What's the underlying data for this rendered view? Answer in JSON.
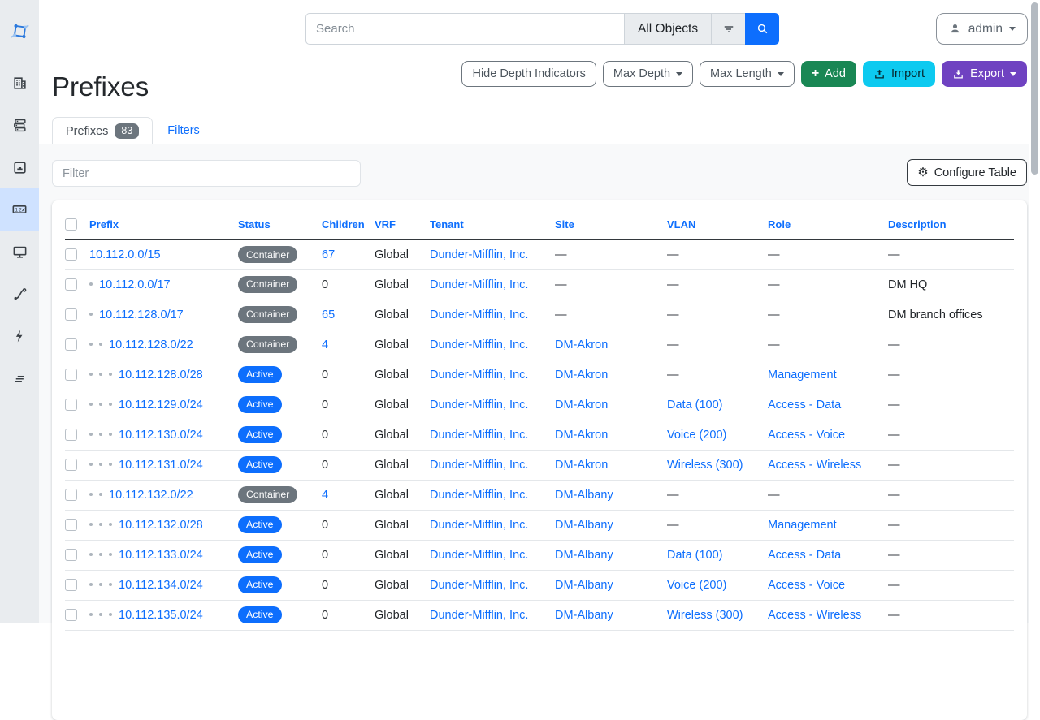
{
  "topbar": {
    "search_placeholder": "Search",
    "scope_label": "All Objects",
    "user_label": "admin"
  },
  "sidebar": {
    "items": [
      {
        "icon": "netbox-logo"
      },
      {
        "icon": "building"
      },
      {
        "icon": "server-stack"
      },
      {
        "icon": "ethernet-port"
      },
      {
        "icon": "counter",
        "active": true
      },
      {
        "icon": "monitor"
      },
      {
        "icon": "cable"
      },
      {
        "icon": "lightning-bolt"
      },
      {
        "icon": "stacked-lines"
      }
    ]
  },
  "page": {
    "title": "Prefixes"
  },
  "toolbar": {
    "hide_depth_label": "Hide Depth Indicators",
    "max_depth_label": "Max Depth",
    "max_length_label": "Max Length",
    "add_label": "Add",
    "import_label": "Import",
    "export_label": "Export"
  },
  "tabs": [
    {
      "label": "Prefixes",
      "count": "83",
      "active": true
    },
    {
      "label": "Filters",
      "active": false
    }
  ],
  "table_controls": {
    "filter_placeholder": "Filter",
    "configure_label": "Configure Table"
  },
  "icons": {
    "gear": "⚙",
    "plus": "+"
  },
  "colors": {
    "status": {
      "Container": "#6c757d",
      "Active": "#0d6efd"
    },
    "link": "#0d6efd",
    "add_button": "#198754",
    "import_button": "#0dcaf0",
    "export_button": "#6f42c1",
    "sidebar_active_bg": "#cfe2ff"
  },
  "table": {
    "empty": "—",
    "columns": [
      "Prefix",
      "Status",
      "Children",
      "VRF",
      "Tenant",
      "Site",
      "VLAN",
      "Role",
      "Description"
    ],
    "rows": [
      {
        "depth": 0,
        "prefix": "10.112.0.0/15",
        "status": "Container",
        "children": "67",
        "children_link": true,
        "vrf": "Global",
        "tenant": "Dunder-Mifflin, Inc.",
        "site": "—",
        "vlan": "—",
        "role": "—",
        "description": "—"
      },
      {
        "depth": 1,
        "prefix": "10.112.0.0/17",
        "status": "Container",
        "children": "0",
        "children_link": false,
        "vrf": "Global",
        "tenant": "Dunder-Mifflin, Inc.",
        "site": "—",
        "vlan": "—",
        "role": "—",
        "description": "DM HQ"
      },
      {
        "depth": 1,
        "prefix": "10.112.128.0/17",
        "status": "Container",
        "children": "65",
        "children_link": true,
        "vrf": "Global",
        "tenant": "Dunder-Mifflin, Inc.",
        "site": "—",
        "vlan": "—",
        "role": "—",
        "description": "DM branch offices"
      },
      {
        "depth": 2,
        "prefix": "10.112.128.0/22",
        "status": "Container",
        "children": "4",
        "children_link": true,
        "vrf": "Global",
        "tenant": "Dunder-Mifflin, Inc.",
        "site": "DM-Akron",
        "vlan": "—",
        "role": "—",
        "description": "—"
      },
      {
        "depth": 3,
        "prefix": "10.112.128.0/28",
        "status": "Active",
        "children": "0",
        "children_link": false,
        "vrf": "Global",
        "tenant": "Dunder-Mifflin, Inc.",
        "site": "DM-Akron",
        "vlan": "—",
        "role": "Management",
        "description": "—"
      },
      {
        "depth": 3,
        "prefix": "10.112.129.0/24",
        "status": "Active",
        "children": "0",
        "children_link": false,
        "vrf": "Global",
        "tenant": "Dunder-Mifflin, Inc.",
        "site": "DM-Akron",
        "vlan": "Data (100)",
        "role": "Access - Data",
        "description": "—"
      },
      {
        "depth": 3,
        "prefix": "10.112.130.0/24",
        "status": "Active",
        "children": "0",
        "children_link": false,
        "vrf": "Global",
        "tenant": "Dunder-Mifflin, Inc.",
        "site": "DM-Akron",
        "vlan": "Voice (200)",
        "role": "Access - Voice",
        "description": "—"
      },
      {
        "depth": 3,
        "prefix": "10.112.131.0/24",
        "status": "Active",
        "children": "0",
        "children_link": false,
        "vrf": "Global",
        "tenant": "Dunder-Mifflin, Inc.",
        "site": "DM-Akron",
        "vlan": "Wireless (300)",
        "role": "Access - Wireless",
        "description": "—"
      },
      {
        "depth": 2,
        "prefix": "10.112.132.0/22",
        "status": "Container",
        "children": "4",
        "children_link": true,
        "vrf": "Global",
        "tenant": "Dunder-Mifflin, Inc.",
        "site": "DM-Albany",
        "vlan": "—",
        "role": "—",
        "description": "—"
      },
      {
        "depth": 3,
        "prefix": "10.112.132.0/28",
        "status": "Active",
        "children": "0",
        "children_link": false,
        "vrf": "Global",
        "tenant": "Dunder-Mifflin, Inc.",
        "site": "DM-Albany",
        "vlan": "—",
        "role": "Management",
        "description": "—"
      },
      {
        "depth": 3,
        "prefix": "10.112.133.0/24",
        "status": "Active",
        "children": "0",
        "children_link": false,
        "vrf": "Global",
        "tenant": "Dunder-Mifflin, Inc.",
        "site": "DM-Albany",
        "vlan": "Data (100)",
        "role": "Access - Data",
        "description": "—"
      },
      {
        "depth": 3,
        "prefix": "10.112.134.0/24",
        "status": "Active",
        "children": "0",
        "children_link": false,
        "vrf": "Global",
        "tenant": "Dunder-Mifflin, Inc.",
        "site": "DM-Albany",
        "vlan": "Voice (200)",
        "role": "Access - Voice",
        "description": "—"
      },
      {
        "depth": 3,
        "prefix": "10.112.135.0/24",
        "status": "Active",
        "children": "0",
        "children_link": false,
        "vrf": "Global",
        "tenant": "Dunder-Mifflin, Inc.",
        "site": "DM-Albany",
        "vlan": "Wireless (300)",
        "role": "Access - Wireless",
        "description": "—"
      }
    ]
  }
}
